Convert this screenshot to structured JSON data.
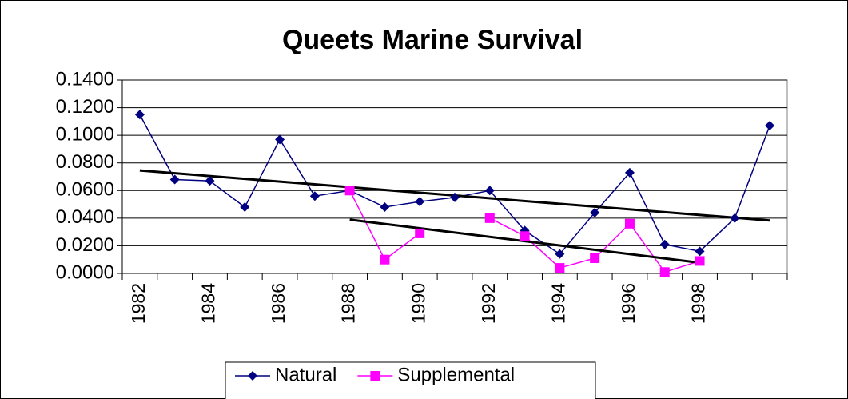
{
  "chart_data": {
    "type": "line",
    "title": "Queets Marine Survival",
    "categories": [
      "1982",
      null,
      "1984",
      null,
      "1986",
      null,
      "1988",
      null,
      "1990",
      null,
      "1992",
      null,
      "1994",
      null,
      "1996",
      null,
      "1998",
      null,
      null
    ],
    "series": [
      {
        "name": "Natural",
        "color": "#000080",
        "marker": "diamond",
        "values": [
          0.115,
          0.068,
          0.067,
          0.048,
          0.097,
          0.056,
          0.06,
          0.048,
          0.052,
          0.055,
          0.06,
          0.031,
          0.014,
          0.044,
          0.073,
          0.021,
          0.016,
          0.04,
          0.107
        ]
      },
      {
        "name": "Supplemental",
        "color": "#ff00ff",
        "marker": "square",
        "values": [
          null,
          null,
          null,
          null,
          null,
          null,
          0.06,
          0.01,
          0.029,
          null,
          0.04,
          0.027,
          0.004,
          0.011,
          0.036,
          0.001,
          0.009,
          null,
          null
        ]
      }
    ],
    "trendline": "linear",
    "trendline_color": "#000000",
    "ylim": [
      0,
      0.14
    ],
    "yticks": [
      {
        "value": 0,
        "label": "0.0000"
      },
      {
        "value": 0.02,
        "label": "0.0200"
      },
      {
        "value": 0.04,
        "label": "0.0400"
      },
      {
        "value": 0.06,
        "label": "0.0600"
      },
      {
        "value": 0.08,
        "label": "0.0800"
      },
      {
        "value": 0.1,
        "label": "0.1000"
      },
      {
        "value": 0.12,
        "label": "0.1200"
      },
      {
        "value": 0.14,
        "label": "0.1400"
      }
    ],
    "grid": true,
    "legend": "bottom"
  }
}
